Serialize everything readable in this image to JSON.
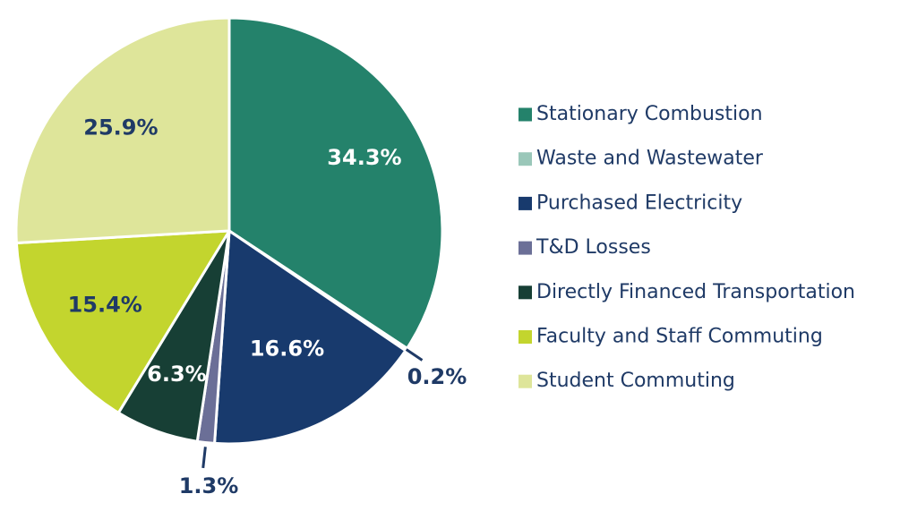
{
  "chart_data": {
    "type": "pie",
    "start_angle_deg": 0,
    "direction": "clockwise",
    "legend_position": "right",
    "slices": [
      {
        "name": "Stationary Combustion",
        "value": 34.3,
        "label": "34.3%",
        "color": "#24826b",
        "label_color": "#ffffff"
      },
      {
        "name": "Waste and Wastewater",
        "value": 0.2,
        "label": "0.2%",
        "color": "#9ac7b9",
        "label_color": "#1f3a66",
        "leader": true
      },
      {
        "name": "Purchased Electricity",
        "value": 16.6,
        "label": "16.6%",
        "color": "#183a6d",
        "label_color": "#ffffff"
      },
      {
        "name": "T&D Losses",
        "value": 1.3,
        "label": "1.3%",
        "color": "#6b6f97",
        "label_color": "#1f3a66",
        "leader": true
      },
      {
        "name": "Directly Financed Transportation",
        "value": 6.3,
        "label": "6.3%",
        "color": "#173f35",
        "label_color": "#ffffff"
      },
      {
        "name": "Faculty and Staff Commuting",
        "value": 15.4,
        "label": "15.4%",
        "color": "#c3d52e",
        "label_color": "#1f3a66"
      },
      {
        "name": "Student Commuting",
        "value": 25.9,
        "label": "25.9%",
        "color": "#dee59a",
        "label_color": "#1f3a66"
      }
    ],
    "text_color": "#1f3a66"
  }
}
